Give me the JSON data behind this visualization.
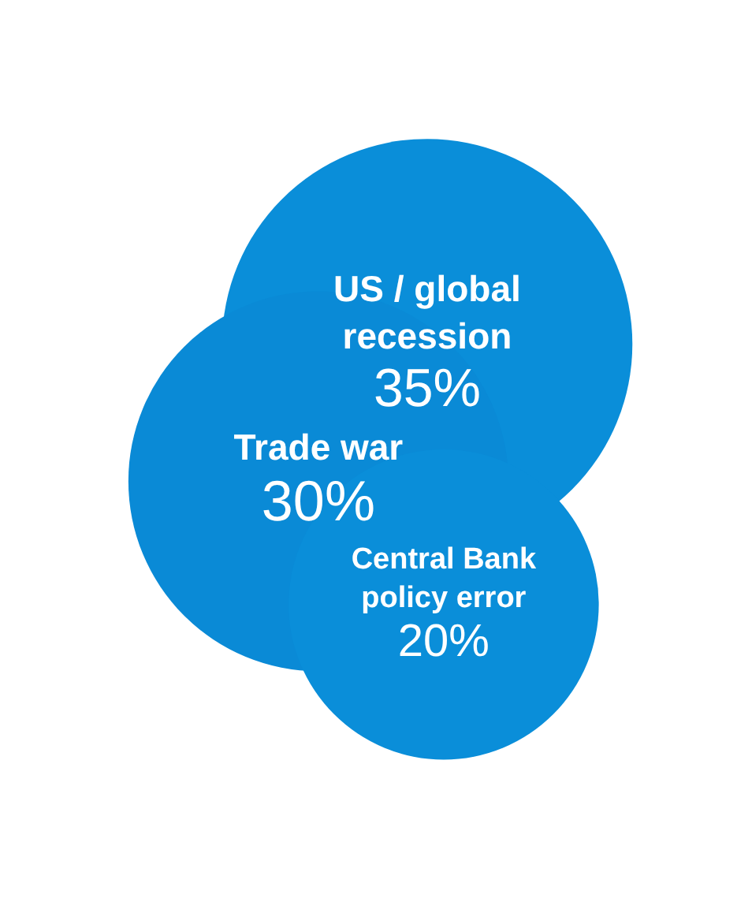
{
  "chart_data": {
    "type": "other",
    "categories": [
      "US / global recession",
      "Trade war",
      "Central Bank policy error"
    ],
    "values": [
      35,
      30,
      20
    ],
    "value_labels": [
      "35%",
      "30%",
      "20%"
    ],
    "colors": [
      "#0a8ed9",
      "#0a8ad6",
      "#0a8ed9"
    ]
  }
}
